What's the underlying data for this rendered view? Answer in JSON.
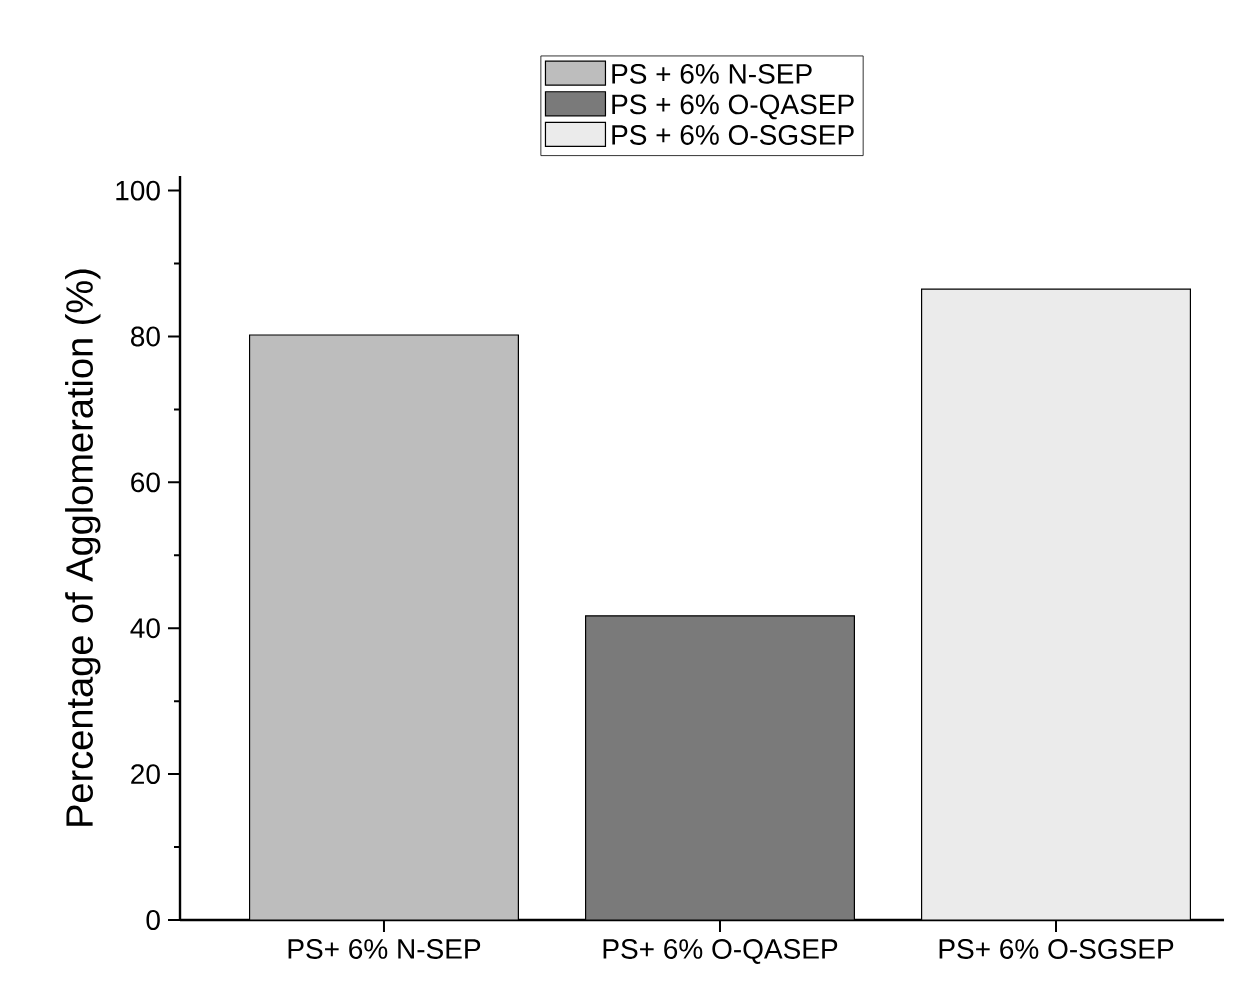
{
  "chart_data": {
    "type": "bar",
    "ylabel": "Percentage of Agglomeration (%)",
    "categories": [
      "PS+ 6% N-SEP",
      "PS+ 6% O-QASEP",
      "PS+ 6% O-SGSEP"
    ],
    "series": [
      {
        "name": "PS + 6% N-SEP",
        "color": "#bdbdbd",
        "values": [
          80.2,
          null,
          null
        ]
      },
      {
        "name": "PS + 6% O-QASEP",
        "color": "#7a7a7a",
        "values": [
          null,
          41.7,
          null
        ]
      },
      {
        "name": "PS + 6% O-SGSEP",
        "color": "#ebebeb",
        "values": [
          null,
          null,
          86.5
        ]
      }
    ],
    "ylim": [
      0,
      102
    ],
    "yticks": [
      0,
      20,
      40,
      60,
      80,
      100
    ],
    "legend": "top",
    "grid": false
  }
}
